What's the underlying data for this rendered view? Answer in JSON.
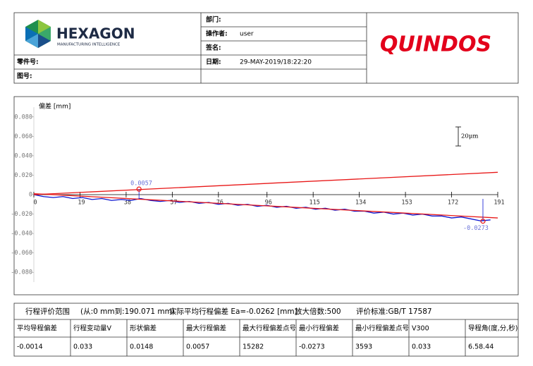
{
  "header": {
    "logo": {
      "name": "HEXAGON",
      "tagline": "MANUFACTURING INTELLIGENCE"
    },
    "brand": "QUINDOS",
    "part_no": {
      "label": "零件号:"
    },
    "drawing_no": {
      "label": "图号:"
    },
    "department": {
      "label": "部门:"
    },
    "operator": {
      "label": "操作者:",
      "value": "user"
    },
    "signature": {
      "label": "签名:"
    },
    "date": {
      "label": "日期:",
      "value": "29-MAY-2019/18:22:20"
    }
  },
  "chart_data": {
    "type": "line",
    "y_label": "偏差 [mm]",
    "scale_label": "20μm",
    "xlim": [
      0,
      191
    ],
    "xticks": [
      0,
      19,
      38,
      57,
      76,
      96,
      115,
      134,
      153,
      172,
      191
    ],
    "ylim": [
      -0.09,
      0.09
    ],
    "yticks": [
      {
        "value": 0.08,
        "label": "0.080"
      },
      {
        "value": 0.06,
        "label": "0.060"
      },
      {
        "value": 0.04,
        "label": "0.040"
      },
      {
        "value": 0.02,
        "label": "0.020"
      },
      0,
      {
        "value": -0.02,
        "label": "-0.020"
      },
      {
        "value": -0.04,
        "label": "-0.040"
      },
      {
        "value": -0.06,
        "label": "-0.060"
      },
      {
        "value": -0.08,
        "label": "-0.080"
      }
    ],
    "series": [
      {
        "color": "#0a14d0",
        "x": [
          0,
          4,
          8,
          12,
          16,
          20,
          24,
          28,
          32,
          36,
          40,
          44,
          48,
          52,
          56,
          60,
          64,
          68,
          72,
          76,
          80,
          84,
          88,
          92,
          96,
          100,
          104,
          108,
          112,
          116,
          120,
          124,
          128,
          132,
          136,
          140,
          144,
          148,
          152,
          156,
          160,
          164,
          168,
          172,
          176,
          180,
          184,
          188
        ],
        "values": [
          0,
          -0.002,
          -0.003,
          -0.002,
          -0.004,
          -0.003,
          -0.005,
          -0.004,
          -0.006,
          -0.005,
          -0.006,
          -0.004,
          -0.006,
          -0.007,
          -0.006,
          -0.008,
          -0.007,
          -0.009,
          -0.008,
          -0.01,
          -0.009,
          -0.011,
          -0.01,
          -0.012,
          -0.011,
          -0.013,
          -0.012,
          -0.014,
          -0.013,
          -0.015,
          -0.014,
          -0.016,
          -0.015,
          -0.017,
          -0.017,
          -0.019,
          -0.018,
          -0.02,
          -0.019,
          -0.021,
          -0.02,
          -0.022,
          -0.022,
          -0.024,
          -0.023,
          -0.025,
          -0.027,
          -0.026
        ]
      },
      {
        "color": "#e81818",
        "x": [
          0,
          191
        ],
        "values": [
          0,
          0.023
        ]
      },
      {
        "color": "#e81818",
        "x": [
          0,
          191
        ],
        "values": [
          0.001,
          -0.024
        ]
      }
    ],
    "markers": [
      {
        "x": 43.3,
        "value": 0.0057
      },
      {
        "x": 184.9,
        "value": -0.0273
      }
    ]
  },
  "summary": {
    "range_title": "行程评价范围",
    "range": "(从:0 mm到:190.071 mm)",
    "ea": "实际平均行程偏差 Ea=-0.0262 [mm]",
    "magnification": "放大倍数:500",
    "standard": "评价标准:GB/T 17587",
    "columns": [
      "平均导程偏差",
      "行程变动量V",
      "形状偏差",
      "最大行程偏差",
      "最大行程偏差点号",
      "最小行程偏差",
      "最小行程偏差点号",
      "V300",
      "导程角(度,分,秒)"
    ],
    "values": [
      "-0.0014",
      "0.033",
      "0.0148",
      "0.0057",
      "15282",
      "-0.0273",
      "3593",
      "0.033",
      "6.58.44"
    ]
  }
}
